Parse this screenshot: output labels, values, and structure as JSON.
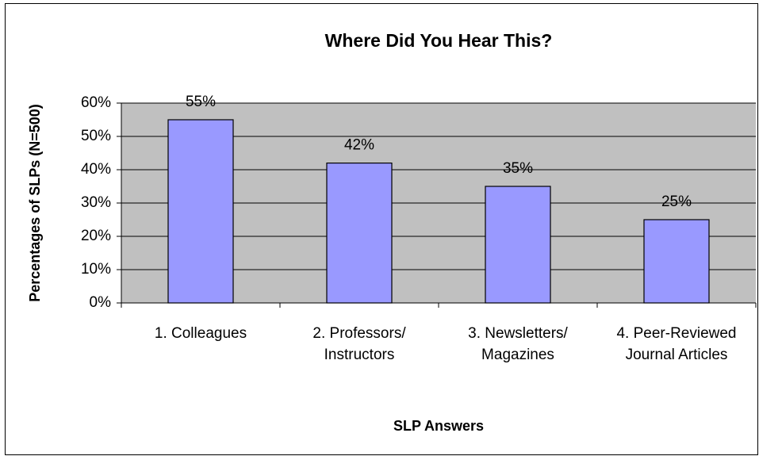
{
  "chart_data": {
    "type": "bar",
    "title": "Where Did You Hear This?",
    "x_label": "SLP Answers",
    "y_label": "Percentages of SLPs (N=500)",
    "categories": [
      "1.  Colleagues",
      "2.  Professors/ Instructors",
      "3.  Newsletters/ Magazines",
      "4.  Peer-Reviewed Journal Articles"
    ],
    "values": [
      55,
      42,
      35,
      25
    ],
    "value_labels": [
      "55%",
      "42%",
      "35%",
      "25%"
    ],
    "color": "#9999ff",
    "ylim": [
      0,
      60
    ],
    "yticks": [
      {
        "value": 0,
        "label": "0%"
      },
      {
        "value": 10,
        "label": "10%"
      },
      {
        "value": 20,
        "label": "20%"
      },
      {
        "value": 30,
        "label": "30%"
      },
      {
        "value": 40,
        "label": "40%"
      },
      {
        "value": 50,
        "label": "50%"
      },
      {
        "value": 60,
        "label": "60%"
      }
    ],
    "grid": true
  }
}
